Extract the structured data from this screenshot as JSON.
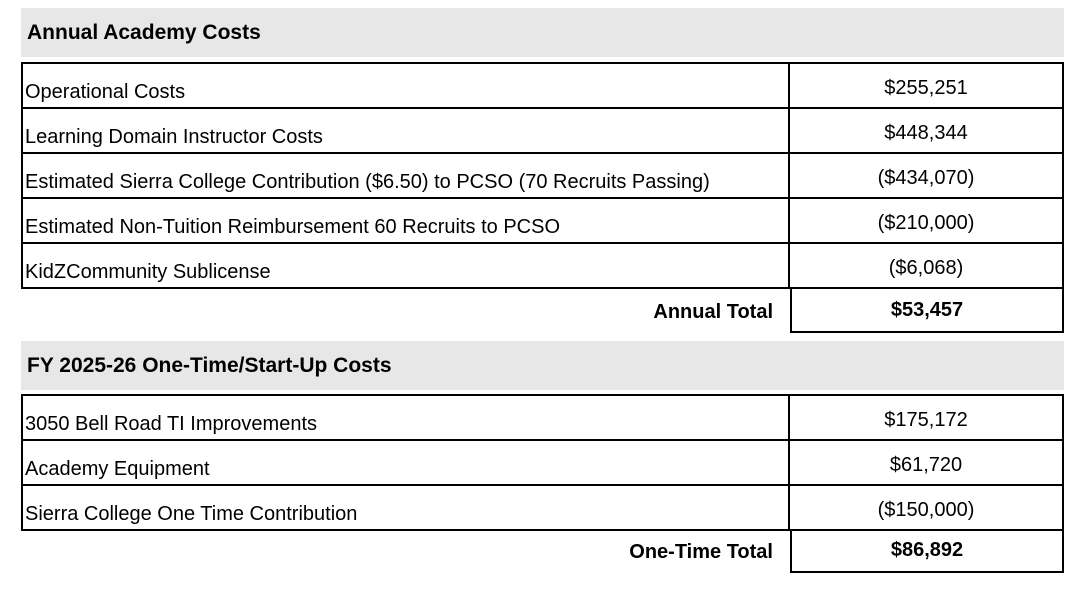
{
  "theme": {
    "header_bg": "#e7e7e7",
    "border_color": "#000000",
    "text_color": "#000000"
  },
  "sections": [
    {
      "title": "Annual Academy Costs",
      "rows": [
        {
          "label": "Operational Costs",
          "amount": "$255,251"
        },
        {
          "label": "Learning Domain Instructor Costs",
          "amount": "$448,344"
        },
        {
          "label": "Estimated Sierra College Contribution ($6.50) to PCSO (70 Recruits Passing)",
          "amount": "($434,070)"
        },
        {
          "label": "Estimated Non-Tuition Reimbursement 60 Recruits to PCSO",
          "amount": "($210,000)"
        },
        {
          "label": "KidZCommunity Sublicense",
          "amount": "($6,068)"
        }
      ],
      "total": {
        "label": "Annual Total",
        "amount": "$53,457"
      }
    },
    {
      "title": "FY 2025-26 One-Time/Start-Up Costs",
      "rows": [
        {
          "label": "3050 Bell Road TI Improvements",
          "amount": "$175,172"
        },
        {
          "label": "Academy Equipment",
          "amount": "$61,720"
        },
        {
          "label": "Sierra College One Time Contribution",
          "amount": "($150,000)"
        }
      ],
      "total": {
        "label": "One-Time Total",
        "amount": "$86,892"
      }
    }
  ]
}
